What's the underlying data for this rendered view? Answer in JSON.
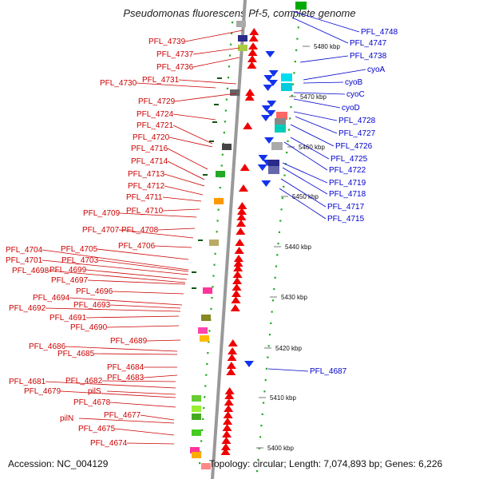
{
  "title": "Pseudomonas fluorescens Pf-5, complete genome",
  "footer": {
    "accession": "Accession: NC_004129",
    "summary": "Topology: circular; Length: 7,074,893 bp; Genes: 6,226"
  },
  "colors": {
    "left_labels": "#cc0000",
    "right_labels": "#0000cc",
    "backbone": "#999999",
    "tick_dots": "#22aa22"
  },
  "kbp_ticks": [
    {
      "label": "5480 kbp"
    },
    {
      "label": "5470 kbp"
    },
    {
      "label": "5460 kbp"
    },
    {
      "label": "5450 kbp"
    },
    {
      "label": "5440 kbp"
    },
    {
      "label": "5430 kbp"
    },
    {
      "label": "5420 kbp"
    },
    {
      "label": "5410 kbp"
    },
    {
      "label": "5400 kbp"
    }
  ],
  "left_genes": [
    "PFL_4739",
    "PFL_4737",
    "PFL_4736",
    "PFL_4731",
    "PFL_4730",
    "PFL_4729",
    "PFL_4724",
    "PFL_4721",
    "PFL_4720",
    "PFL_4716",
    "PFL_4714",
    "PFL_4713",
    "PFL_4712",
    "PFL_4711",
    "PFL_4710",
    "PFL_4709",
    "PFL_4708",
    "PFL_4707",
    "PFL_4706",
    "PFL_4705",
    "PFL_4704",
    "PFL_4703",
    "PFL_4701",
    "PFL_4699",
    "PFL_4698",
    "PFL_4697",
    "PFL_4696",
    "PFL_4694",
    "PFL_4693",
    "PFL_4692",
    "PFL_4691",
    "PFL_4690",
    "PFL_4689",
    "PFL_4686",
    "PFL_4685",
    "PFL_4684",
    "PFL_4683",
    "PFL_4682",
    "PFL_4681",
    "pilS",
    "PFL_4679",
    "PFL_4678",
    "PFL_4677",
    "pilN",
    "PFL_4675",
    "PFL_4674"
  ],
  "right_genes": [
    "PFL_4748",
    "PFL_4747",
    "PFL_4738",
    "cyoA",
    "cyoB",
    "cyoC",
    "cyoD",
    "PFL_4728",
    "PFL_4727",
    "PFL_4726",
    "PFL_4725",
    "PFL_4722",
    "PFL_4719",
    "PFL_4718",
    "PFL_4717",
    "PFL_4715",
    "PFL_4687"
  ]
}
